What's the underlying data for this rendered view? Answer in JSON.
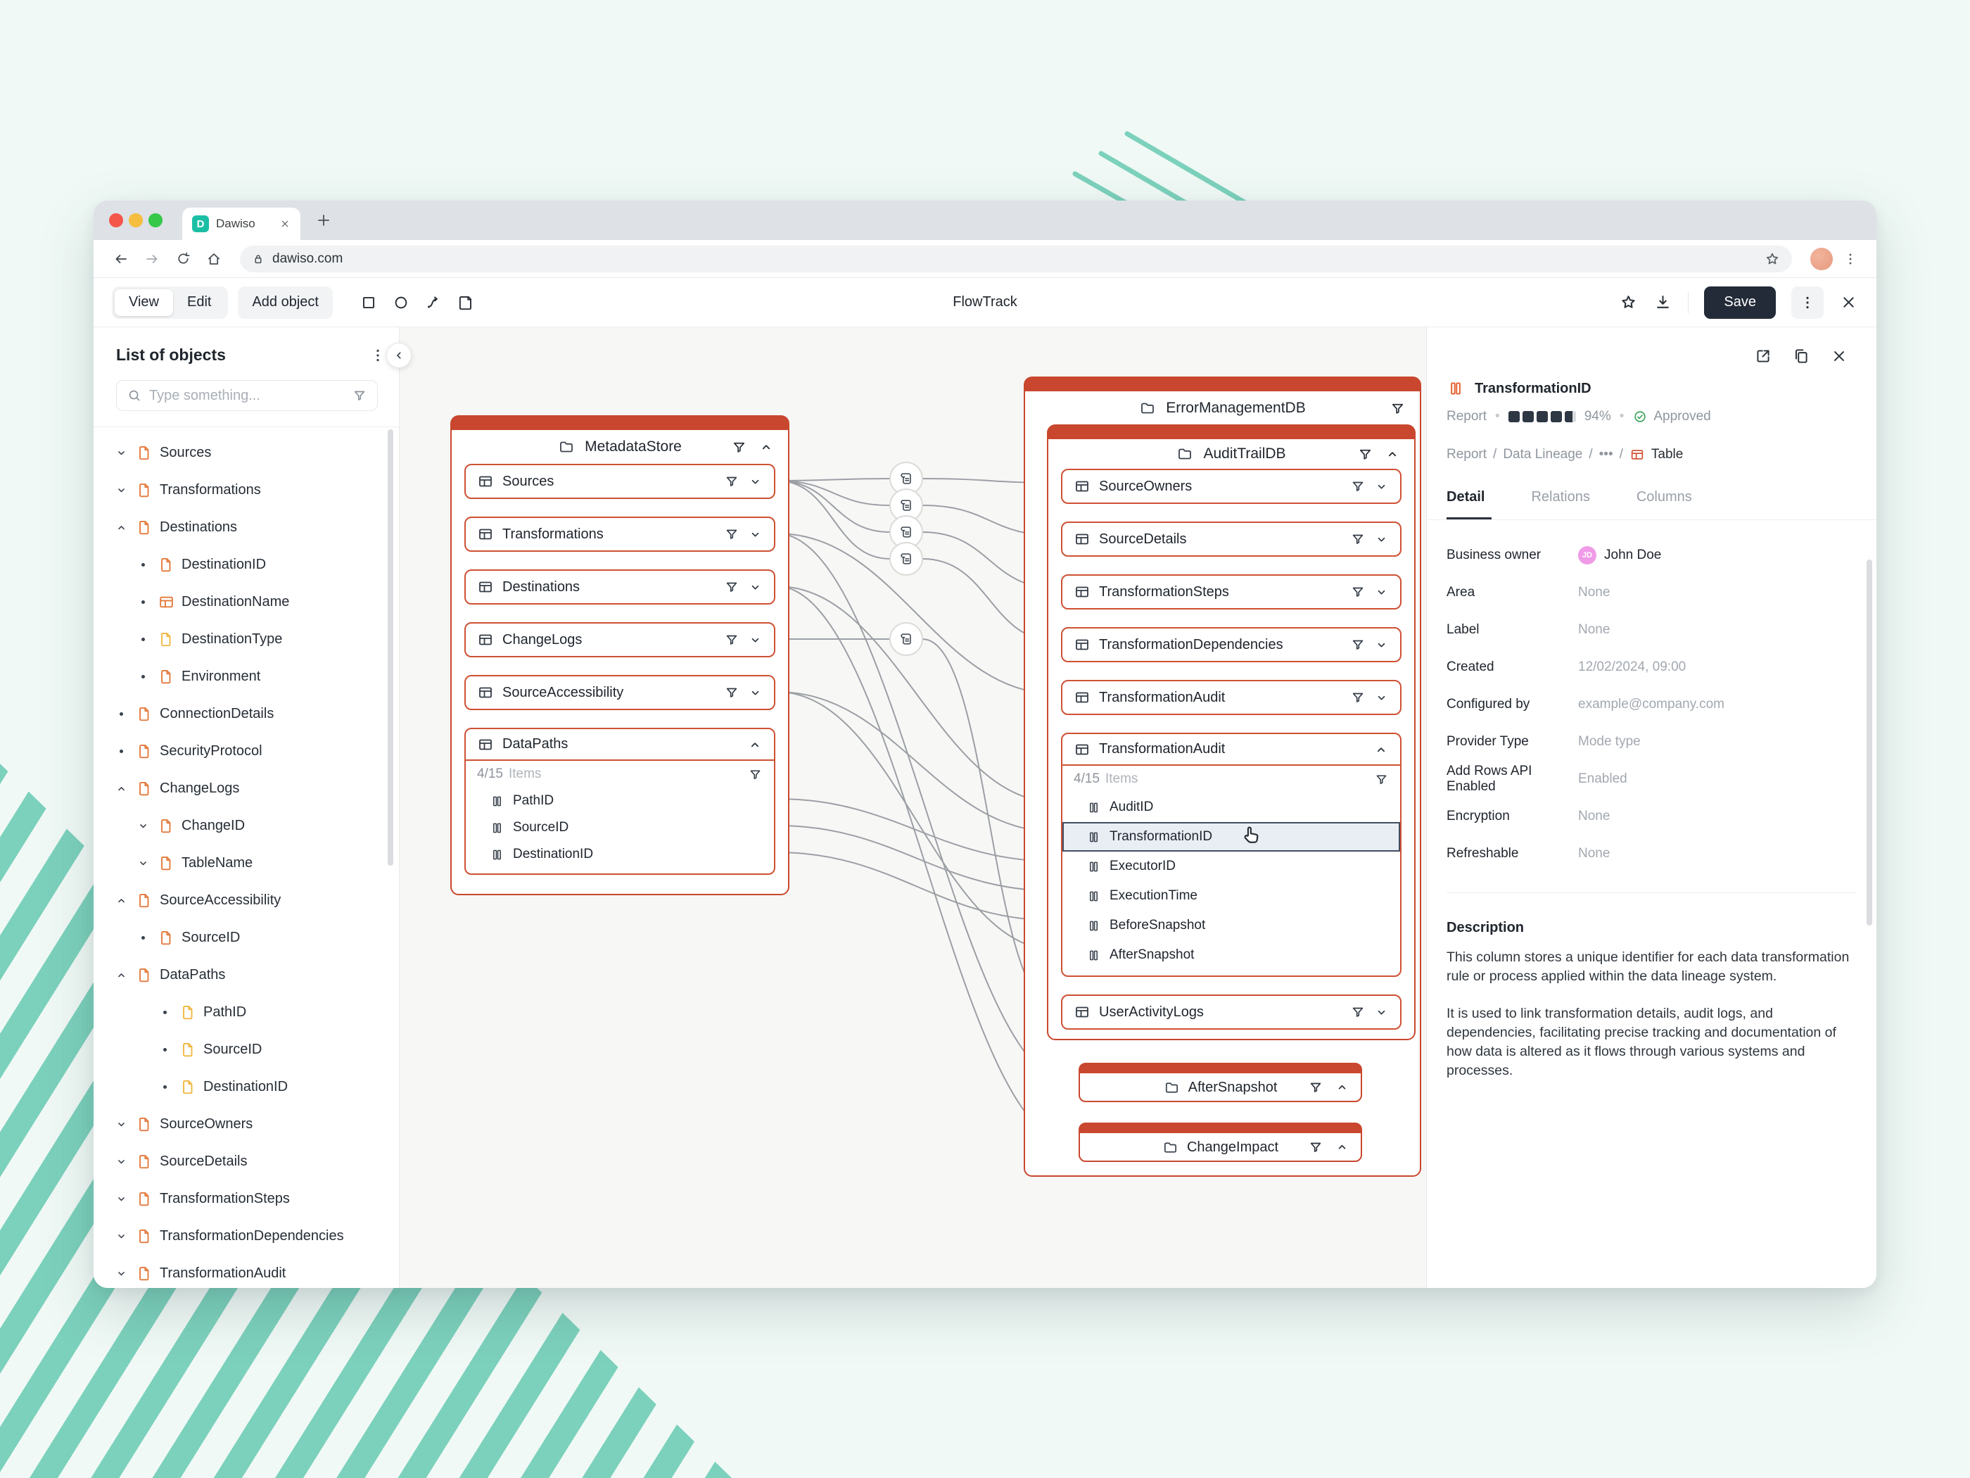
{
  "browser": {
    "tab_title": "Dawiso",
    "url": "dawiso.com"
  },
  "toolbar": {
    "view": "View",
    "edit": "Edit",
    "add_object": "Add object",
    "doc_title": "FlowTrack",
    "save": "Save"
  },
  "sidebar": {
    "title": "List of objects",
    "search_placeholder": "Type something...",
    "items": [
      {
        "label": "Sources",
        "level": 0,
        "marker": "down",
        "icon": "file-orange"
      },
      {
        "label": "Transformations",
        "level": 0,
        "marker": "down",
        "icon": "file-orange"
      },
      {
        "label": "Destinations",
        "level": 0,
        "marker": "up",
        "icon": "file-orange"
      },
      {
        "label": "DestinationID",
        "level": 1,
        "marker": "dot",
        "icon": "file-orange"
      },
      {
        "label": "DestinationName",
        "level": 1,
        "marker": "dot",
        "icon": "table-orange"
      },
      {
        "label": "DestinationType",
        "level": 1,
        "marker": "dot",
        "icon": "file-yellow"
      },
      {
        "label": "Environment",
        "level": 1,
        "marker": "dot",
        "icon": "file-orange"
      },
      {
        "label": "ConnectionDetails",
        "level": 0,
        "marker": "dot",
        "icon": "file-orange"
      },
      {
        "label": "SecurityProtocol",
        "level": 0,
        "marker": "dot",
        "icon": "file-orange"
      },
      {
        "label": "ChangeLogs",
        "level": 0,
        "marker": "up",
        "icon": "file-orange"
      },
      {
        "label": "ChangeID",
        "level": 1,
        "marker": "down",
        "icon": "file-orange"
      },
      {
        "label": "TableName",
        "level": 1,
        "marker": "down",
        "icon": "file-orange"
      },
      {
        "label": "SourceAccessibility",
        "level": 0,
        "marker": "up",
        "icon": "file-orange"
      },
      {
        "label": "SourceID",
        "level": 1,
        "marker": "dot",
        "icon": "file-orange"
      },
      {
        "label": "DataPaths",
        "level": 0,
        "marker": "up",
        "icon": "file-orange"
      },
      {
        "label": "PathID",
        "level": 2,
        "marker": "dot",
        "icon": "file-yellow"
      },
      {
        "label": "SourceID",
        "level": 2,
        "marker": "dot",
        "icon": "file-yellow"
      },
      {
        "label": "DestinationID",
        "level": 2,
        "marker": "dot",
        "icon": "file-yellow"
      },
      {
        "label": "SourceOwners",
        "level": 0,
        "marker": "down",
        "icon": "file-orange"
      },
      {
        "label": "SourceDetails",
        "level": 0,
        "marker": "down",
        "icon": "file-orange"
      },
      {
        "label": "TransformationSteps",
        "level": 0,
        "marker": "down",
        "icon": "file-orange"
      },
      {
        "label": "TransformationDependencies",
        "level": 0,
        "marker": "down",
        "icon": "file-orange"
      },
      {
        "label": "TransformationAudit",
        "level": 0,
        "marker": "down",
        "icon": "file-orange"
      }
    ]
  },
  "canvas": {
    "metadata_store": {
      "title": "MetadataStore",
      "rows": [
        "Sources",
        "Transformations",
        "Destinations",
        "ChangeLogs",
        "SourceAccessibility"
      ],
      "expanded": {
        "title": "DataPaths",
        "count": "4/15",
        "count_suffix": "Items",
        "columns": [
          "PathID",
          "SourceID",
          "DestinationID"
        ]
      }
    },
    "error_db": {
      "title": "ErrorManagementDB",
      "audit_db": {
        "title": "AuditTrailDB",
        "rows": [
          "SourceOwners",
          "SourceDetails",
          "TransformationSteps",
          "TransformationDependencies",
          "TransformationAudit"
        ],
        "expanded": {
          "title": "TransformationAudit",
          "count": "4/15",
          "count_suffix": "Items",
          "columns": [
            "AuditID",
            "TransformationID",
            "ExecutorID",
            "ExecutionTime",
            "BeforeSnapshot",
            "AfterSnapshot"
          ],
          "selected": "TransformationID"
        },
        "bottom_row": "UserActivityLogs"
      },
      "sub_nodes": [
        "AfterSnapshot",
        "ChangeImpact"
      ]
    },
    "edges": [
      {
        "from": "Sources",
        "to": "SourceOwners",
        "via": 0
      },
      {
        "from": "Sources",
        "to": "SourceDetails",
        "via": 1
      },
      {
        "from": "Sources",
        "to": "TransformationSteps",
        "via": 2
      },
      {
        "from": "Sources",
        "to": "TransformationDependencies",
        "via": 3
      },
      {
        "from": "Transformations",
        "to": "TransformationAudit"
      },
      {
        "from": "Destinations",
        "to": "AuditID"
      },
      {
        "from": "ChangeLogs",
        "to": "UserActivityLogs",
        "via": 4
      },
      {
        "from": "SourceAccessibility",
        "to": "TransformationID"
      },
      {
        "from": "PathID",
        "to": "ExecutorID"
      },
      {
        "from": "SourceID",
        "to": "ExecutionTime"
      },
      {
        "from": "DestinationID",
        "to": "BeforeSnapshot"
      },
      {
        "from": "SourceAccessibility",
        "to": "AfterSnapshotCol"
      },
      {
        "from": "Transformations",
        "to": "AfterSnapshotNode"
      },
      {
        "from": "Destinations",
        "to": "ChangeImpactNode"
      }
    ]
  },
  "panel": {
    "title": "TransformationID",
    "type_label": "Report",
    "score": "94%",
    "status": "Approved",
    "breadcrumb": {
      "parts": [
        "Report",
        "Data Lineage"
      ],
      "ellipsis": "•••",
      "last": "Table"
    },
    "tabs": [
      "Detail",
      "Relations",
      "Columns"
    ],
    "active_tab": "Detail",
    "fields": [
      {
        "label": "Business owner",
        "value": "John Doe",
        "avatar": "JD"
      },
      {
        "label": "Area",
        "value": "None"
      },
      {
        "label": "Label",
        "value": "None"
      },
      {
        "label": "Created",
        "value": "12/02/2024, 09:00"
      },
      {
        "label": "Configured by",
        "value": "example@company.com"
      },
      {
        "label": "Provider Type",
        "value": "Mode type"
      },
      {
        "label": "Add Rows API Enabled",
        "value": "Enabled"
      },
      {
        "label": "Encryption",
        "value": "None"
      },
      {
        "label": "Refreshable",
        "value": "None"
      }
    ],
    "description_title": "Description",
    "description_paragraphs": [
      "This column stores a unique identifier for each data transformation rule or process applied within the data lineage system.",
      "It is used to link transformation details, audit logs, and dependencies, facilitating precise tracking and documentation of how data is altered as it flows through various systems and processes."
    ]
  },
  "colors": {
    "accent_red": "#C9472E",
    "brand_teal": "#7CD1BC",
    "approved_green": "#3BA55C",
    "avatar_pink": "#F09BE8",
    "icon_orange": "#E4793B",
    "icon_yellow": "#F0B840"
  }
}
